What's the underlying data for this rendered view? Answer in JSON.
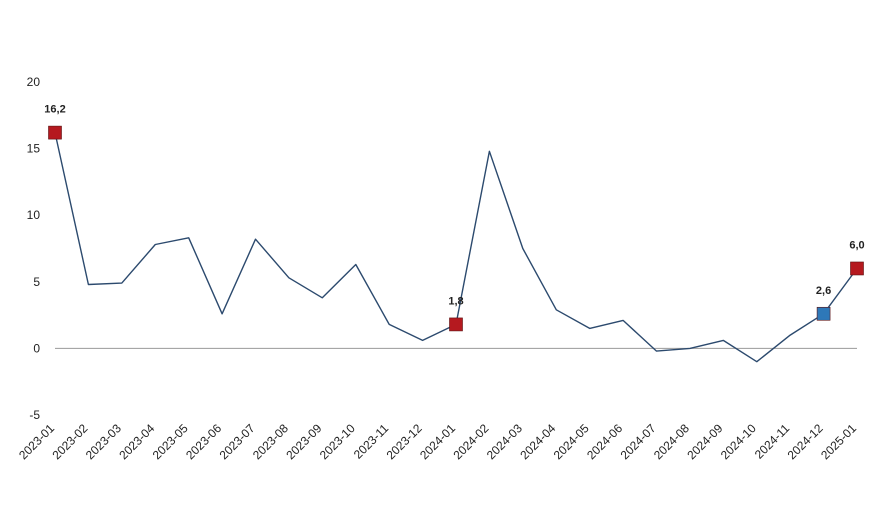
{
  "chart_data": {
    "type": "line",
    "categories": [
      "2023-01",
      "2023-02",
      "2023-03",
      "2023-04",
      "2023-05",
      "2023-06",
      "2023-07",
      "2023-08",
      "2023-09",
      "2023-10",
      "2023-11",
      "2023-12",
      "2024-01",
      "2024-02",
      "2024-03",
      "2024-04",
      "2024-05",
      "2024-06",
      "2024-07",
      "2024-08",
      "2024-09",
      "2024-10",
      "2024-11",
      "2024-12",
      "2025-01"
    ],
    "series": [
      {
        "values": [
          16.2,
          4.8,
          4.9,
          7.8,
          8.3,
          2.6,
          8.2,
          5.3,
          3.8,
          6.3,
          1.8,
          0.6,
          1.8,
          14.8,
          7.5,
          2.9,
          1.5,
          2.1,
          -0.2,
          0.0,
          0.6,
          -1.0,
          1.0,
          2.6,
          6.0
        ]
      }
    ],
    "y_ticks": [
      "-5",
      "0",
      "5",
      "10",
      "15",
      "20"
    ],
    "ylim": [
      -5,
      20
    ],
    "line_color": "#2c4a6e",
    "zero_line_color": "#9a9a9a",
    "markers": [
      {
        "index": 0,
        "label": "16,2",
        "color": "#b5191f"
      },
      {
        "index": 12,
        "label": "1,8",
        "color": "#b5191f"
      },
      {
        "index": 23,
        "label": "2,6",
        "color": "#2e78b8"
      },
      {
        "index": 24,
        "label": "6,0",
        "color": "#b5191f"
      }
    ],
    "grid": false,
    "legend": "none"
  }
}
